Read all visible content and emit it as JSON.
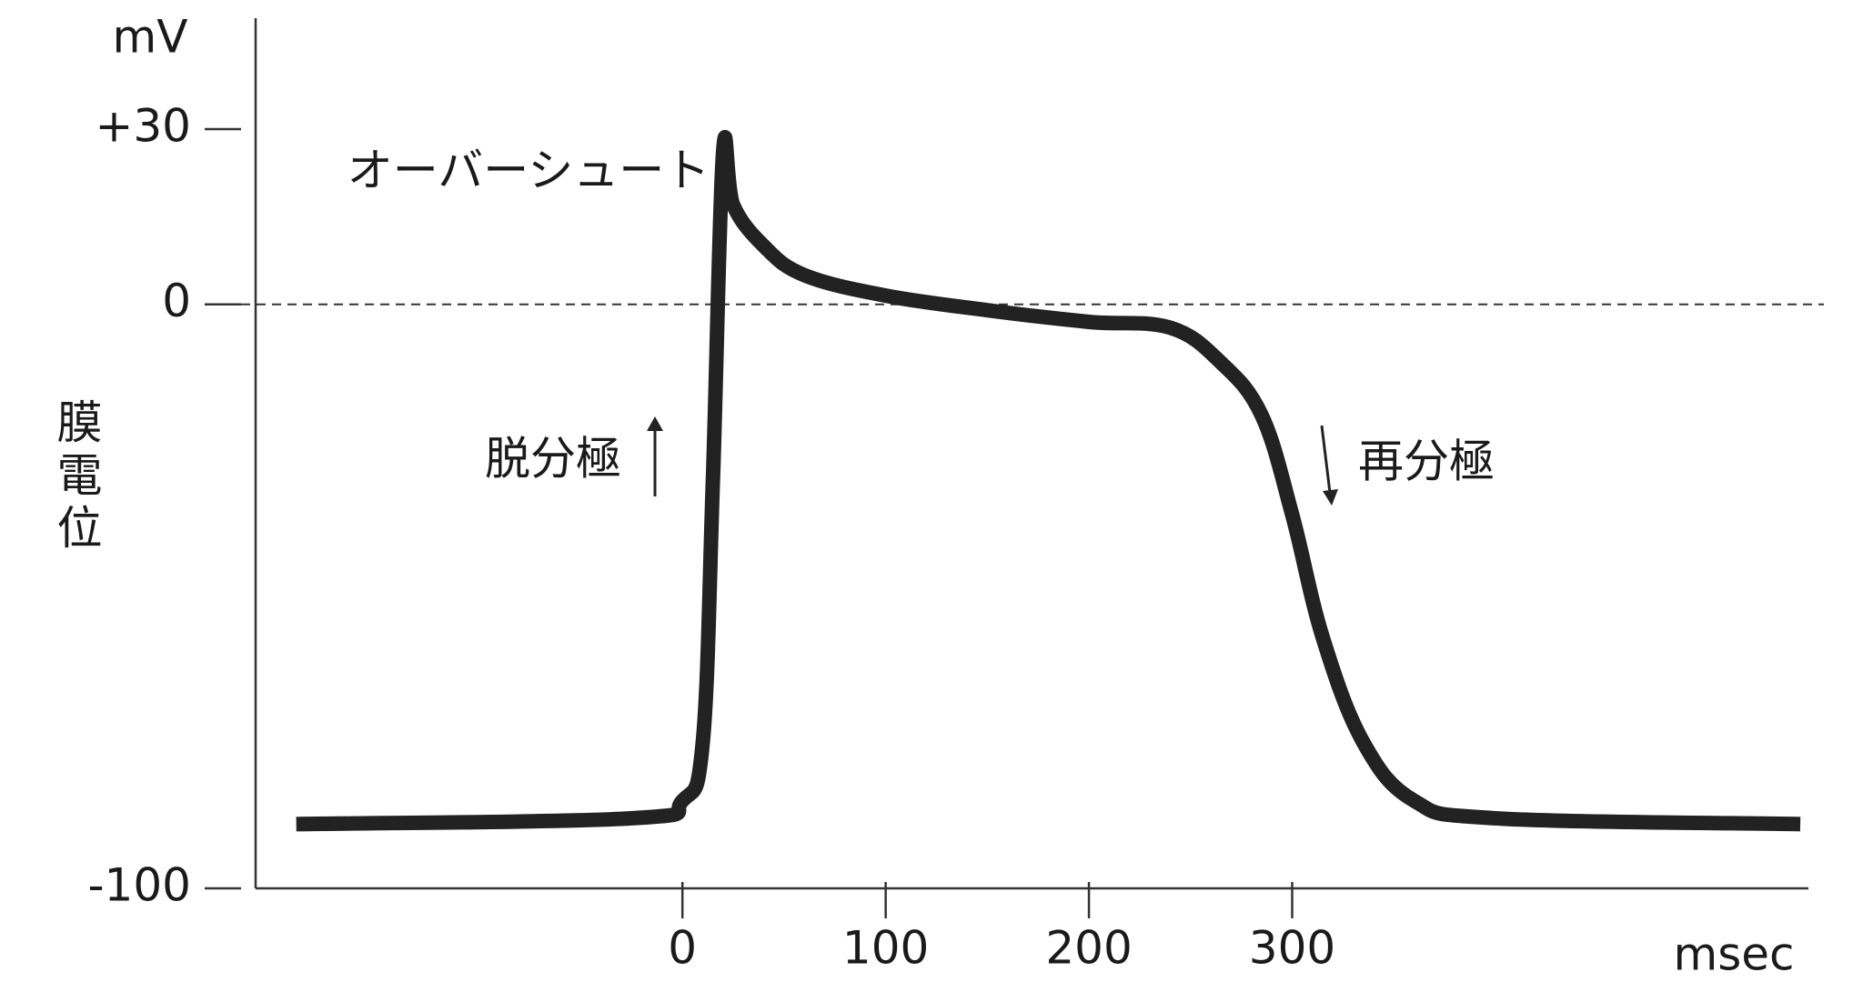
{
  "chart_data": {
    "type": "line",
    "y_unit": "mV",
    "x_unit": "msec",
    "y_label": "膜電位",
    "annotations": [
      "オーバーシュート",
      "脱分極",
      "再分極"
    ],
    "xlim": [
      -210,
      554
    ],
    "ylim": [
      -100,
      49
    ],
    "xticks": [
      0,
      100,
      200,
      300
    ],
    "yticks": [
      {
        "value": 30,
        "label": "+30"
      },
      0,
      -100
    ],
    "reference_line": 0,
    "series": [
      {
        "color": "#222222",
        "x": [
          -190,
          -25,
          0,
          10,
          15,
          20,
          25,
          40,
          60,
          100,
          150,
          200,
          240,
          265,
          285,
          300,
          315,
          335,
          360,
          400,
          550
        ],
        "values": [
          -89,
          -88,
          -85,
          -75,
          -30,
          26,
          17,
          10,
          5,
          1.5,
          -1,
          -3,
          -4,
          -10,
          -19,
          -36,
          -57,
          -75,
          -85,
          -88,
          -89
        ]
      }
    ]
  }
}
